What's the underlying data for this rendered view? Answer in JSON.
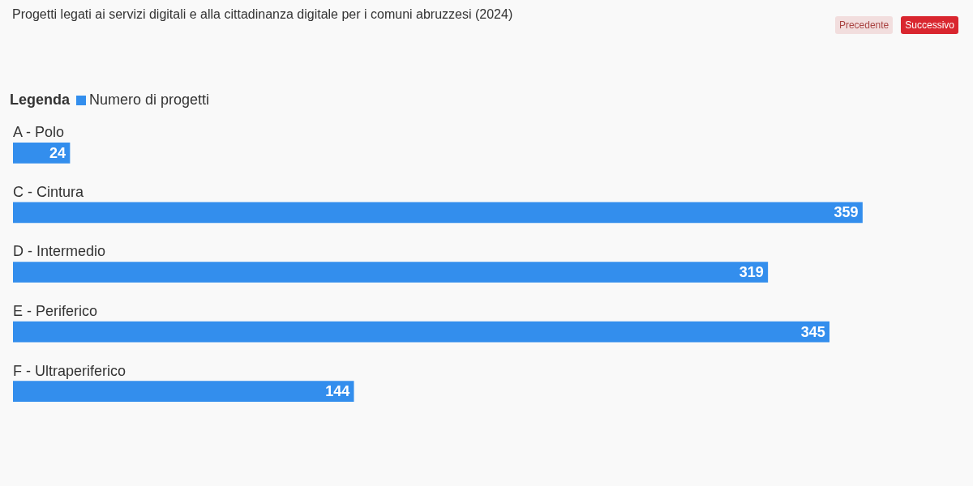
{
  "chart_data": {
    "type": "bar",
    "orientation": "horizontal",
    "title": "Progetti legati ai servizi digitali e alla cittadinanza digitale per i comuni abruzzesi (2024)",
    "legend_title": "Legenda",
    "legend": "top left",
    "categories": [
      "A - Polo",
      "C - Cintura",
      "D - Intermedio",
      "E - Periferico",
      "F - Ultraperiferico"
    ],
    "series": [
      {
        "name": "Numero di progetti",
        "color": "#338eed",
        "values": [
          24,
          359,
          319,
          345,
          144
        ]
      }
    ],
    "data_labels": true,
    "annotations": [
      "Precedente",
      "Successivo"
    ]
  }
}
